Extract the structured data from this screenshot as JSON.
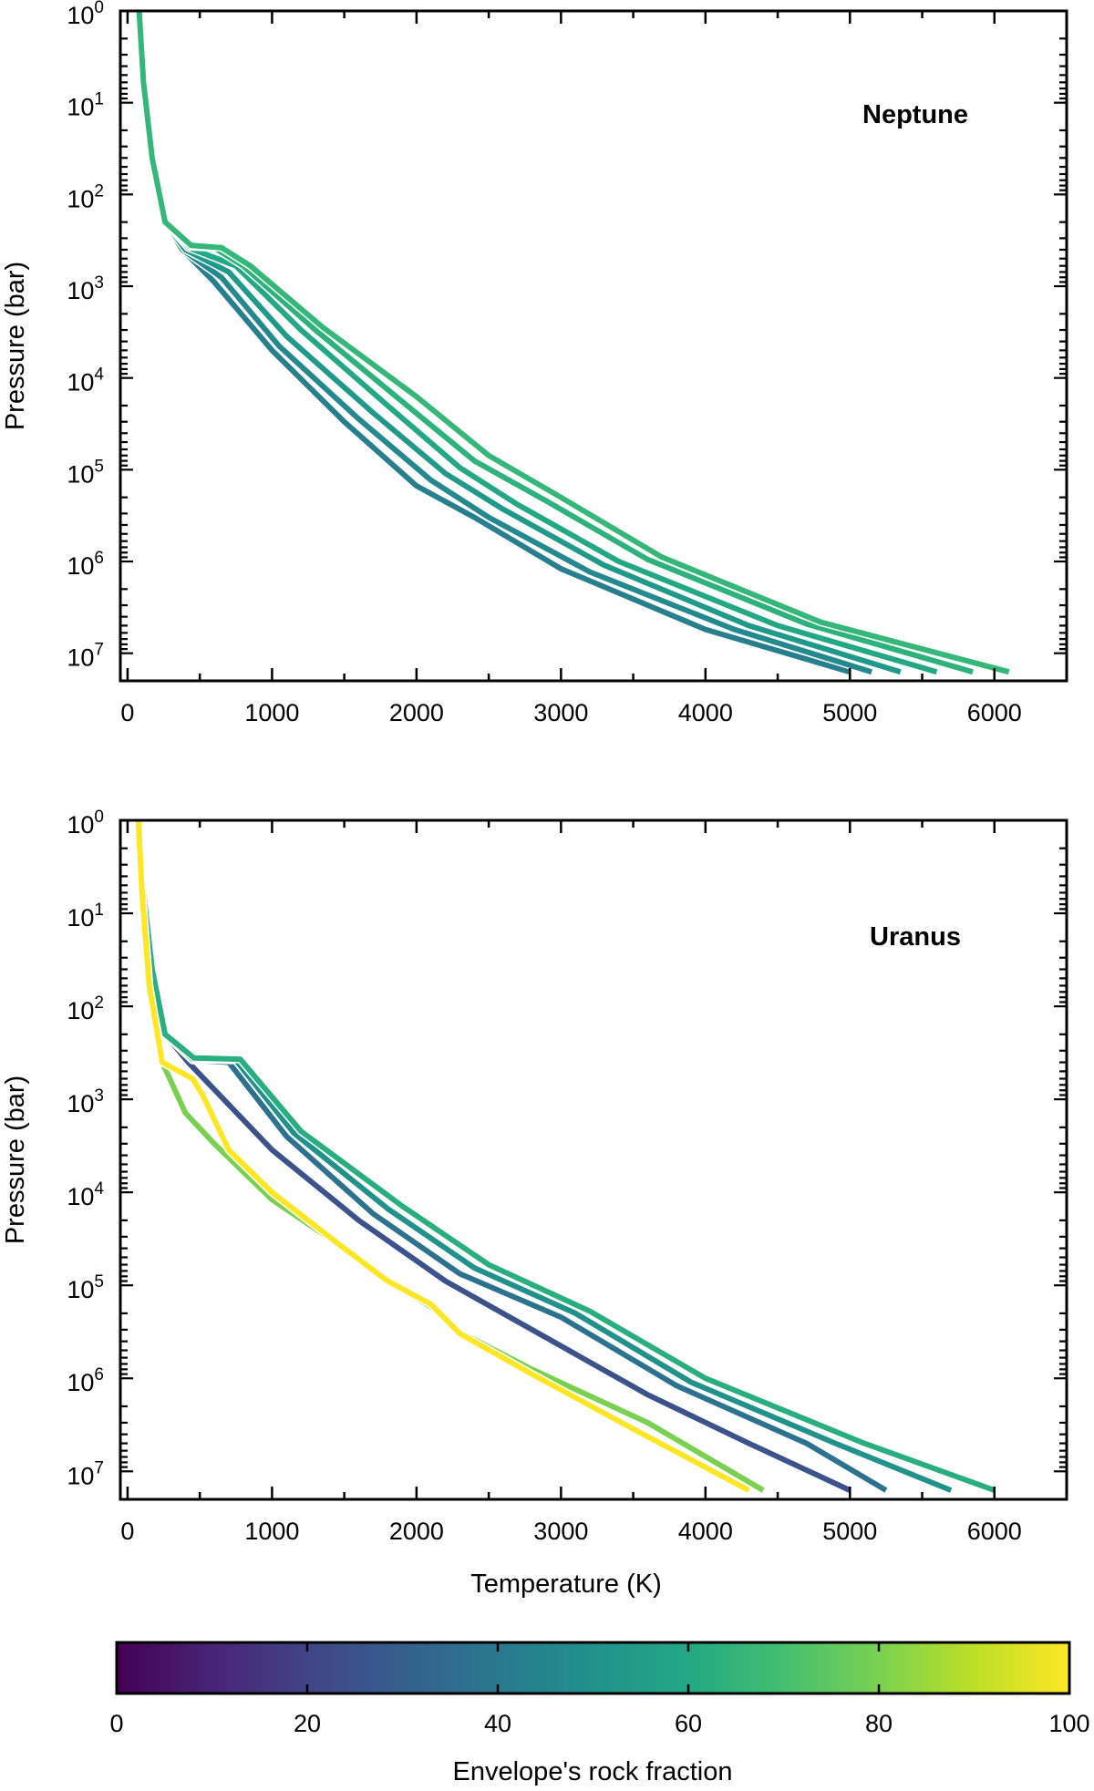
{
  "chart_data": [
    {
      "type": "line",
      "title": "Neptune",
      "xlabel": "",
      "ylabel": "Pressure (bar)",
      "xlim": [
        -50,
        6500
      ],
      "ylim": [
        1,
        20000000
      ],
      "yscale": "log",
      "y_inverted": true,
      "xticks": [
        "0",
        "1000",
        "2000",
        "3000",
        "4000",
        "5000",
        "6000"
      ],
      "yticks": [
        "10^0",
        "10^1",
        "10^2",
        "10^3",
        "10^4",
        "10^5",
        "10^6",
        "10^7"
      ],
      "grid": false,
      "series": [
        {
          "color": "#277f8e",
          "points": [
            [
              80,
              1
            ],
            [
              110,
              6
            ],
            [
              170,
              40
            ],
            [
              260,
              200
            ],
            [
              380,
              400
            ],
            [
              600,
              900
            ],
            [
              1000,
              5000
            ],
            [
              1500,
              30000
            ],
            [
              2000,
              150000
            ],
            [
              2400,
              330000
            ],
            [
              3000,
              1200000
            ],
            [
              4000,
              5500000
            ],
            [
              5000,
              16000000
            ]
          ]
        },
        {
          "color": "#23898e",
          "points": [
            [
              80,
              1
            ],
            [
              110,
              6
            ],
            [
              170,
              40
            ],
            [
              260,
              200
            ],
            [
              380,
              400
            ],
            [
              650,
              800
            ],
            [
              1050,
              4500
            ],
            [
              1600,
              28000
            ],
            [
              2100,
              130000
            ],
            [
              2500,
              330000
            ],
            [
              3200,
              1300000
            ],
            [
              4200,
              5500000
            ],
            [
              5150,
              16000000
            ]
          ]
        },
        {
          "color": "#1f9a8a",
          "points": [
            [
              80,
              1
            ],
            [
              110,
              6
            ],
            [
              170,
              40
            ],
            [
              260,
              200
            ],
            [
              400,
              400
            ],
            [
              700,
              700
            ],
            [
              1100,
              3500
            ],
            [
              1700,
              24000
            ],
            [
              2200,
              110000
            ],
            [
              2600,
              270000
            ],
            [
              3300,
              1100000
            ],
            [
              4300,
              5000000
            ],
            [
              5350,
              16000000
            ]
          ]
        },
        {
          "color": "#22a884",
          "points": [
            [
              80,
              1
            ],
            [
              110,
              6
            ],
            [
              170,
              40
            ],
            [
              260,
              200
            ],
            [
              420,
              380
            ],
            [
              750,
              600
            ],
            [
              1200,
              3000
            ],
            [
              1800,
              20000
            ],
            [
              2300,
              95000
            ],
            [
              2700,
              240000
            ],
            [
              3400,
              1000000
            ],
            [
              4500,
              5000000
            ],
            [
              5600,
              16000000
            ]
          ]
        },
        {
          "color": "#2db27d",
          "points": [
            [
              80,
              1
            ],
            [
              110,
              6
            ],
            [
              170,
              40
            ],
            [
              260,
              200
            ],
            [
              430,
              370
            ],
            [
              600,
              380
            ],
            [
              800,
              600
            ],
            [
              1300,
              3000
            ],
            [
              1900,
              18000
            ],
            [
              2400,
              80000
            ],
            [
              2900,
              220000
            ],
            [
              3600,
              950000
            ],
            [
              4700,
              4800000
            ],
            [
              5850,
              16000000
            ]
          ]
        },
        {
          "color": "#35b779",
          "points": [
            [
              80,
              1
            ],
            [
              110,
              6
            ],
            [
              170,
              40
            ],
            [
              260,
              200
            ],
            [
              440,
              360
            ],
            [
              650,
              380
            ],
            [
              850,
              600
            ],
            [
              1350,
              2800
            ],
            [
              2000,
              16000
            ],
            [
              2500,
              70000
            ],
            [
              3000,
              200000
            ],
            [
              3700,
              900000
            ],
            [
              4800,
              4600000
            ],
            [
              6100,
              16000000
            ]
          ]
        }
      ]
    },
    {
      "type": "line",
      "title": "Uranus",
      "xlabel": "Temperature (K)",
      "ylabel": "Pressure (bar)",
      "xlim": [
        -50,
        6500
      ],
      "ylim": [
        1,
        20000000
      ],
      "yscale": "log",
      "y_inverted": true,
      "xticks": [
        "0",
        "1000",
        "2000",
        "3000",
        "4000",
        "5000",
        "6000"
      ],
      "yticks": [
        "10^0",
        "10^1",
        "10^2",
        "10^3",
        "10^4",
        "10^5",
        "10^6",
        "10^7"
      ],
      "grid": false,
      "series": [
        {
          "color": "#3b528b",
          "points": [
            [
              75,
              1
            ],
            [
              110,
              6
            ],
            [
              170,
              40
            ],
            [
              260,
              200
            ],
            [
              420,
              400
            ],
            [
              1000,
              3500
            ],
            [
              1600,
              20000
            ],
            [
              2200,
              90000
            ],
            [
              2800,
              300000
            ],
            [
              3600,
              1500000
            ],
            [
              4300,
              5000000
            ],
            [
              5000,
              16000000
            ]
          ]
        },
        {
          "color": "#2c728e",
          "points": [
            [
              75,
              1
            ],
            [
              110,
              6
            ],
            [
              170,
              40
            ],
            [
              260,
              200
            ],
            [
              450,
              380
            ],
            [
              700,
              400
            ],
            [
              1100,
              2500
            ],
            [
              1700,
              17000
            ],
            [
              2300,
              75000
            ],
            [
              3000,
              220000
            ],
            [
              3800,
              1200000
            ],
            [
              4700,
              5000000
            ],
            [
              5250,
              16000000
            ]
          ]
        },
        {
          "color": "#21918c",
          "points": [
            [
              75,
              1
            ],
            [
              110,
              6
            ],
            [
              170,
              40
            ],
            [
              260,
              200
            ],
            [
              450,
              370
            ],
            [
              750,
              380
            ],
            [
              1150,
              2300
            ],
            [
              1800,
              15000
            ],
            [
              2400,
              65000
            ],
            [
              3100,
              200000
            ],
            [
              3900,
              1100000
            ],
            [
              4900,
              5000000
            ],
            [
              5700,
              16000000
            ]
          ]
        },
        {
          "color": "#28ae80",
          "points": [
            [
              75,
              1
            ],
            [
              110,
              6
            ],
            [
              170,
              40
            ],
            [
              260,
              200
            ],
            [
              460,
              360
            ],
            [
              780,
              370
            ],
            [
              1200,
              2200
            ],
            [
              1900,
              14000
            ],
            [
              2500,
              60000
            ],
            [
              3200,
              190000
            ],
            [
              4000,
              1000000
            ],
            [
              5100,
              5000000
            ],
            [
              6000,
              16000000
            ]
          ]
        },
        {
          "color": "#7ad151",
          "points": [
            [
              75,
              1
            ],
            [
              100,
              6
            ],
            [
              150,
              60
            ],
            [
              240,
              400
            ],
            [
              400,
              1400
            ],
            [
              600,
              3000
            ],
            [
              1000,
              12000
            ],
            [
              1500,
              40000
            ],
            [
              1800,
              90000
            ],
            [
              2100,
              170000
            ],
            [
              2300,
              320000
            ],
            [
              2800,
              800000
            ],
            [
              3600,
              3000000
            ],
            [
              4400,
              16000000
            ]
          ]
        },
        {
          "color": "#fde725",
          "points": [
            [
              75,
              1
            ],
            [
              100,
              6
            ],
            [
              150,
              60
            ],
            [
              240,
              400
            ],
            [
              450,
              600
            ],
            [
              520,
              900
            ],
            [
              700,
              3500
            ],
            [
              1000,
              10000
            ],
            [
              1500,
              40000
            ],
            [
              1800,
              90000
            ],
            [
              2100,
              160000
            ],
            [
              2300,
              330000
            ],
            [
              2800,
              900000
            ],
            [
              3500,
              3500000
            ],
            [
              4300,
              16000000
            ]
          ]
        }
      ]
    }
  ],
  "colorbar": {
    "label": "Envelope's rock fraction",
    "range": [
      0,
      100
    ],
    "ticks": [
      "0",
      "20",
      "40",
      "60",
      "80",
      "100"
    ],
    "colormap": "viridis"
  }
}
